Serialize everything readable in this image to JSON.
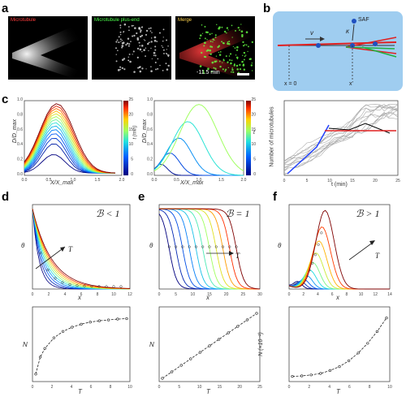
{
  "panel_letters": [
    "a",
    "b",
    "c",
    "d",
    "e",
    "f"
  ],
  "panel_a": {
    "labels": [
      "Microtubule",
      "Microtubule plus-end",
      "Merge"
    ],
    "time": "-11.5 min"
  },
  "panel_b": {
    "saf_label": "SAF",
    "v_label": "v",
    "kappa_label": "κ",
    "x0_label": "x = 0",
    "xprime_label": "x′"
  },
  "panel_c": {
    "chart_data": [
      {
        "type": "line",
        "xlabel": "X/X_max",
        "ylabel": "D/D_max",
        "colorbar_label": "t (min)",
        "colorbar_ticks": [
          "0",
          "5",
          "10",
          "15",
          "20",
          "25"
        ],
        "x_ticks": [
          "0.0",
          "0.5",
          "1.0",
          "1.5",
          "2.0"
        ],
        "y_ticks": [
          "0.0",
          "0.2",
          "0.4",
          "0.6",
          "0.8",
          "1.0"
        ]
      },
      {
        "type": "line",
        "xlabel": "X/X_max",
        "ylabel": "D/D_max",
        "colorbar_label": "t",
        "colorbar_ticks": [
          "0",
          "5",
          "10",
          "15",
          "20",
          "25"
        ],
        "x_ticks": [
          "0.0",
          "0.5",
          "1.0",
          "1.5",
          "2.0"
        ],
        "y_ticks": [
          "0.0",
          "0.2",
          "0.4",
          "0.6",
          "0.8",
          "1.0"
        ]
      },
      {
        "type": "line",
        "xlabel": "t (min)",
        "ylabel": "Number of microtubules",
        "x_ticks": [
          "0",
          "5",
          "10",
          "15",
          "20",
          "25"
        ]
      }
    ]
  },
  "panel_d": {
    "title": "ℬ < 1",
    "top_xlabel": "x",
    "top_ylabel": "θ",
    "arrow_label": "T",
    "top_x_ticks": [
      "0",
      "2",
      "4",
      "6",
      "8",
      "10",
      "12"
    ],
    "bottom_xlabel": "T",
    "bottom_ylabel": "N",
    "bottom_x_ticks": [
      "0",
      "2",
      "4",
      "6",
      "8",
      "10"
    ],
    "chart_data": {
      "type": "line",
      "x": [
        0,
        0.5,
        1,
        2,
        3,
        4,
        5,
        6,
        7,
        8,
        9,
        10
      ],
      "values": [
        0.5,
        0.9,
        1.1,
        1.35,
        1.5,
        1.6,
        1.67,
        1.72,
        1.75,
        1.77,
        1.79,
        1.8
      ],
      "ylim": [
        0.4,
        2.0
      ]
    }
  },
  "panel_e": {
    "title": "ℬ = 1",
    "top_xlabel": "x",
    "top_ylabel": "θ",
    "arrow_label": "T",
    "top_x_ticks": [
      "0",
      "5",
      "10",
      "15",
      "20",
      "25",
      "30"
    ],
    "bottom_xlabel": "T",
    "bottom_ylabel": "N",
    "bottom_x_ticks": [
      "0",
      "5",
      "10",
      "15",
      "20",
      "25"
    ],
    "chart_data": {
      "type": "line",
      "x": [
        0,
        2.5,
        5,
        7.5,
        10,
        12.5,
        15,
        17.5,
        20,
        22.5,
        25
      ],
      "values": [
        0,
        2,
        4,
        6,
        8,
        10,
        12,
        14,
        16,
        18,
        20
      ],
      "ylim": [
        0,
        21
      ]
    }
  },
  "panel_f": {
    "title": "ℬ > 1",
    "top_xlabel": "x",
    "top_ylabel": "θ",
    "arrow_label": "T",
    "top_x_ticks": [
      "0",
      "2",
      "4",
      "6",
      "8",
      "10",
      "12",
      "14"
    ],
    "bottom_xlabel": "T",
    "bottom_ylabel": "N (×10⁻²)",
    "bottom_x_ticks": [
      "0",
      "2",
      "4",
      "6",
      "8",
      "10"
    ],
    "chart_data": {
      "type": "line",
      "x": [
        0,
        1,
        2,
        3,
        4,
        5,
        6,
        7,
        8,
        9,
        10
      ],
      "values": [
        0.2,
        0.25,
        0.35,
        0.5,
        0.8,
        1.2,
        1.8,
        2.6,
        3.6,
        4.8,
        6.2
      ],
      "ylim": [
        0,
        7
      ]
    }
  }
}
